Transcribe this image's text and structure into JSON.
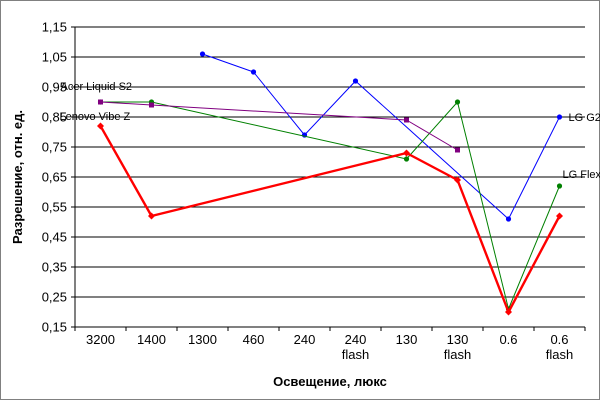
{
  "chart_data": {
    "type": "line",
    "xlabel": "Освещение, люкс",
    "ylabel": "Разрешение, отн. ед.",
    "categories": [
      [
        "3200"
      ],
      [
        "1400"
      ],
      [
        "1300"
      ],
      [
        "460"
      ],
      [
        "240"
      ],
      [
        "240",
        "flash"
      ],
      [
        "130"
      ],
      [
        "130",
        "flash"
      ],
      [
        "0.6"
      ],
      [
        "0.6",
        "flash"
      ]
    ],
    "ylim": [
      0.15,
      1.15
    ],
    "yticks": [
      "0,15",
      "0,25",
      "0,35",
      "0,45",
      "0,55",
      "0,65",
      "0,75",
      "0,85",
      "0,95",
      "1,05",
      "1,15"
    ],
    "grid": "horizontal",
    "series": [
      {
        "name": "LG G2",
        "color": "#0000ff",
        "points": [
          [
            2,
            1.06
          ],
          [
            3,
            1.0
          ],
          [
            4,
            0.79
          ],
          [
            5,
            0.97
          ],
          [
            8,
            0.51
          ],
          [
            9,
            0.85
          ]
        ]
      },
      {
        "name": "LG Flex",
        "color": "#008000",
        "points": [
          [
            0,
            0.9
          ],
          [
            1,
            0.9
          ],
          [
            6,
            0.71
          ],
          [
            7,
            0.9
          ],
          [
            8,
            0.21
          ],
          [
            9,
            0.62
          ]
        ]
      },
      {
        "name": "Acer Liquid S2",
        "color": "#800080",
        "points": [
          [
            0,
            0.9
          ],
          [
            1,
            0.89
          ],
          [
            6,
            0.84
          ],
          [
            7,
            0.74
          ]
        ]
      },
      {
        "name": "Lenovo Vibe Z",
        "color": "#ff0000",
        "points": [
          [
            0,
            0.82
          ],
          [
            1,
            0.52
          ],
          [
            6,
            0.73
          ],
          [
            7,
            0.64
          ],
          [
            8,
            0.2
          ],
          [
            9,
            0.52
          ]
        ]
      }
    ]
  }
}
